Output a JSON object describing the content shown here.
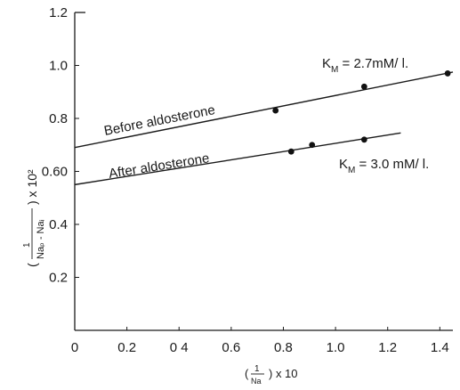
{
  "chart_data": {
    "type": "scatter",
    "xlim": [
      0,
      1.45
    ],
    "ylim": [
      0,
      1.2
    ],
    "xticks": [
      0,
      0.2,
      0.4,
      0.6,
      0.8,
      1.0,
      1.2,
      1.4
    ],
    "xtick_labels": [
      "0",
      "0.2",
      "0 4",
      "0.6",
      "0.8",
      "1.0",
      "1.2",
      "1.4"
    ],
    "yticks": [
      0.2,
      0.4,
      0.6,
      0.8,
      1.0,
      1.2
    ],
    "ytick_labels": [
      "0.2",
      "0.4",
      "0.60",
      "0.8",
      "1.0",
      "1.2"
    ],
    "xlabel": {
      "prefix": "(",
      "num": "1",
      "den": "Na",
      "suffix": ") x 10"
    },
    "ylabel": {
      "prefix": "(",
      "num": "1",
      "den": "Naₚ - Naᵢ",
      "suffix": ") x 10²"
    },
    "grid": false,
    "series": [
      {
        "name": "Before aldosterone",
        "points": [
          {
            "x": 0.77,
            "y": 0.83
          },
          {
            "x": 1.11,
            "y": 0.92
          },
          {
            "x": 1.43,
            "y": 0.97
          }
        ],
        "fit": {
          "x": [
            0,
            1.45
          ],
          "y": [
            0.69,
            0.975
          ]
        },
        "km_label": "K",
        "km_sub": "M",
        "km_value": " = 2.7mM/ l."
      },
      {
        "name": "After aldosterone",
        "points": [
          {
            "x": 0.83,
            "y": 0.675
          },
          {
            "x": 0.91,
            "y": 0.7
          },
          {
            "x": 1.11,
            "y": 0.72
          }
        ],
        "fit": {
          "x": [
            0,
            1.25
          ],
          "y": [
            0.55,
            0.745
          ]
        },
        "km_label": "K",
        "km_sub": "M",
        "km_value": " = 3.0 mM/ l."
      }
    ]
  }
}
